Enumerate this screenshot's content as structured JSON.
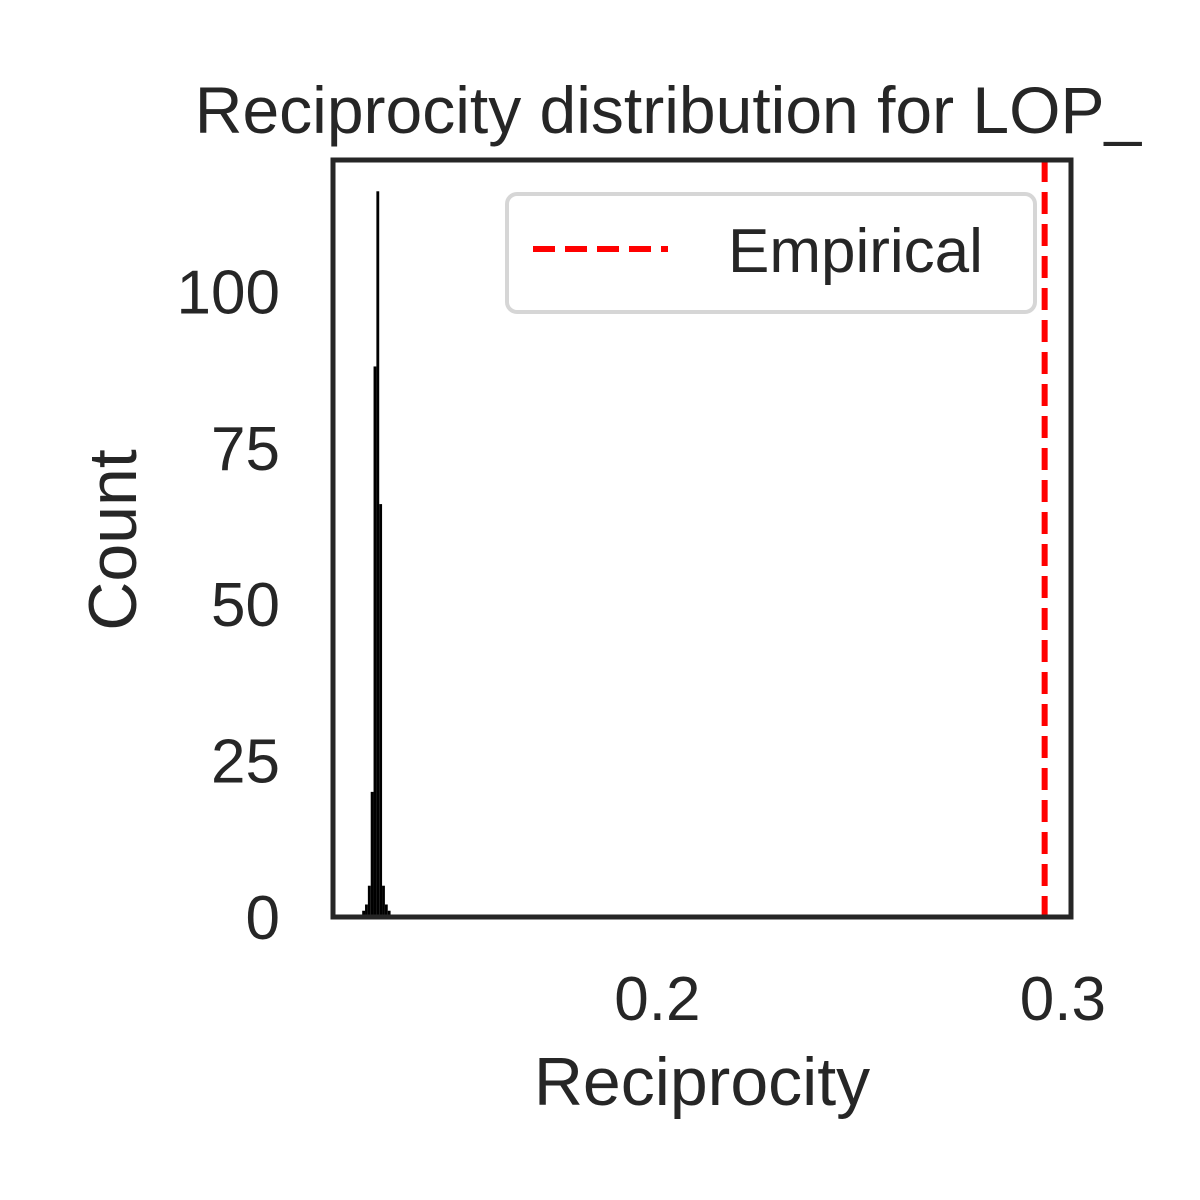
{
  "chart_data": {
    "type": "bar",
    "title": "Reciprocity distribution for LOP_",
    "xlabel": "Reciprocity",
    "ylabel": "Count",
    "xlim": [
      0.12,
      0.302
    ],
    "ylim": [
      0,
      121
    ],
    "x_ticks": [
      0.2,
      0.3
    ],
    "x_tick_labels": [
      "0.2",
      "0.3"
    ],
    "y_ticks": [
      0,
      25,
      50,
      75,
      100
    ],
    "y_tick_labels": [
      "0",
      "25",
      "50",
      "75",
      "100"
    ],
    "grid": false,
    "bar_color": "#000000",
    "histogram": {
      "bin_edges": [
        0.1272,
        0.1279,
        0.1286,
        0.1293,
        0.13,
        0.1307,
        0.1314,
        0.1321,
        0.1328,
        0.1335,
        0.1342
      ],
      "counts": [
        1,
        2,
        5,
        20,
        88,
        116,
        66,
        5,
        2,
        1
      ]
    },
    "empirical": {
      "name": "Empirical",
      "value": 0.2955,
      "color": "#ff0000",
      "style": "dashed"
    },
    "legend": {
      "placement": "top-right",
      "entries": [
        "Empirical"
      ]
    }
  }
}
